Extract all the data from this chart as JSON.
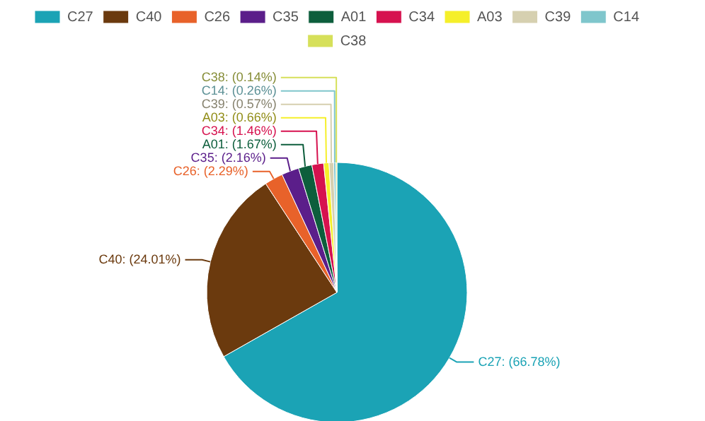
{
  "chart_data": {
    "type": "pie",
    "legend": "top",
    "categories": [
      "C27",
      "C40",
      "C26",
      "C35",
      "A01",
      "C34",
      "A03",
      "C39",
      "C14",
      "C38"
    ],
    "values": [
      66.78,
      24.01,
      2.29,
      2.16,
      1.67,
      1.46,
      0.66,
      0.57,
      0.26,
      0.14
    ],
    "value_labels": [
      "C27: (66.78%)",
      "C40: (24.01%)",
      "C26: (2.29%)",
      "C35: (2.16%)",
      "A01: (1.67%)",
      "C34: (1.46%)",
      "A03: (0.66%)",
      "C39: (0.57%)",
      "C14: (0.26%)",
      "C38: (0.14%)"
    ],
    "colors": [
      "#1ba3b5",
      "#6b3a0e",
      "#e8622a",
      "#5b1e8a",
      "#0d5e3c",
      "#d6124f",
      "#f5ef2a",
      "#d6d0b0",
      "#7fc6cc",
      "#d6e05a"
    ]
  }
}
